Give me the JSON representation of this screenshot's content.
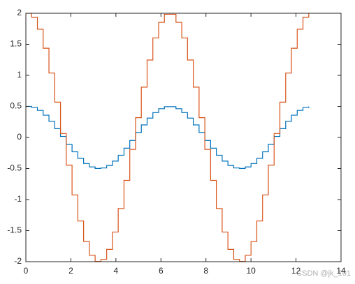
{
  "chart_data": {
    "type": "stairs",
    "x": [
      0,
      0.256,
      0.513,
      0.769,
      1.026,
      1.282,
      1.539,
      1.795,
      2.052,
      2.308,
      2.565,
      2.821,
      3.077,
      3.334,
      3.59,
      3.847,
      4.103,
      4.36,
      4.616,
      4.873,
      5.129,
      5.386,
      5.642,
      5.899,
      6.155,
      6.412,
      6.668,
      6.925,
      7.181,
      7.437,
      7.694,
      7.95,
      8.207,
      8.463,
      8.72,
      8.976,
      9.233,
      9.489,
      9.746,
      10.002,
      10.259,
      10.515,
      10.771,
      11.028,
      11.284,
      11.541,
      11.797,
      12.054,
      12.31,
      12.566
    ],
    "series": [
      {
        "color": "#0072bd",
        "values": [
          0.5,
          0.484,
          0.436,
          0.359,
          0.259,
          0.142,
          0.016,
          -0.111,
          -0.231,
          -0.336,
          -0.419,
          -0.475,
          -0.499,
          -0.491,
          -0.451,
          -0.381,
          -0.286,
          -0.173,
          -0.048,
          0.08,
          0.202,
          0.312,
          0.401,
          0.463,
          0.496,
          0.496,
          0.463,
          0.401,
          0.312,
          0.202,
          0.08,
          -0.048,
          -0.173,
          -0.286,
          -0.381,
          -0.451,
          -0.491,
          -0.499,
          -0.475,
          -0.419,
          -0.336,
          -0.231,
          -0.111,
          0.016,
          0.142,
          0.259,
          0.359,
          0.436,
          0.484,
          0.5
        ]
      },
      {
        "color": "#d95319",
        "values": [
          2,
          1.935,
          1.743,
          1.437,
          1.037,
          0.569,
          0.064,
          -0.445,
          -0.925,
          -1.345,
          -1.676,
          -1.898,
          -1.996,
          -1.963,
          -1.802,
          -1.523,
          -1.144,
          -0.691,
          -0.192,
          0.319,
          0.81,
          1.247,
          1.603,
          1.854,
          1.984,
          1.984,
          1.854,
          1.603,
          1.247,
          0.81,
          0.319,
          -0.192,
          -0.691,
          -1.144,
          -1.523,
          -1.802,
          -1.963,
          -1.996,
          -1.898,
          -1.676,
          -1.345,
          -0.925,
          -0.445,
          0.064,
          0.569,
          1.037,
          1.437,
          1.743,
          1.935,
          2
        ]
      }
    ],
    "xlim": [
      0,
      14
    ],
    "xticks": [
      0,
      2,
      4,
      6,
      8,
      10,
      12,
      14
    ],
    "ylim": [
      -2,
      2
    ],
    "yticks": [
      -2,
      -1.5,
      -1,
      -0.5,
      0,
      0.5,
      1,
      1.5,
      2
    ],
    "watermark": "CSDN @jk_101"
  }
}
